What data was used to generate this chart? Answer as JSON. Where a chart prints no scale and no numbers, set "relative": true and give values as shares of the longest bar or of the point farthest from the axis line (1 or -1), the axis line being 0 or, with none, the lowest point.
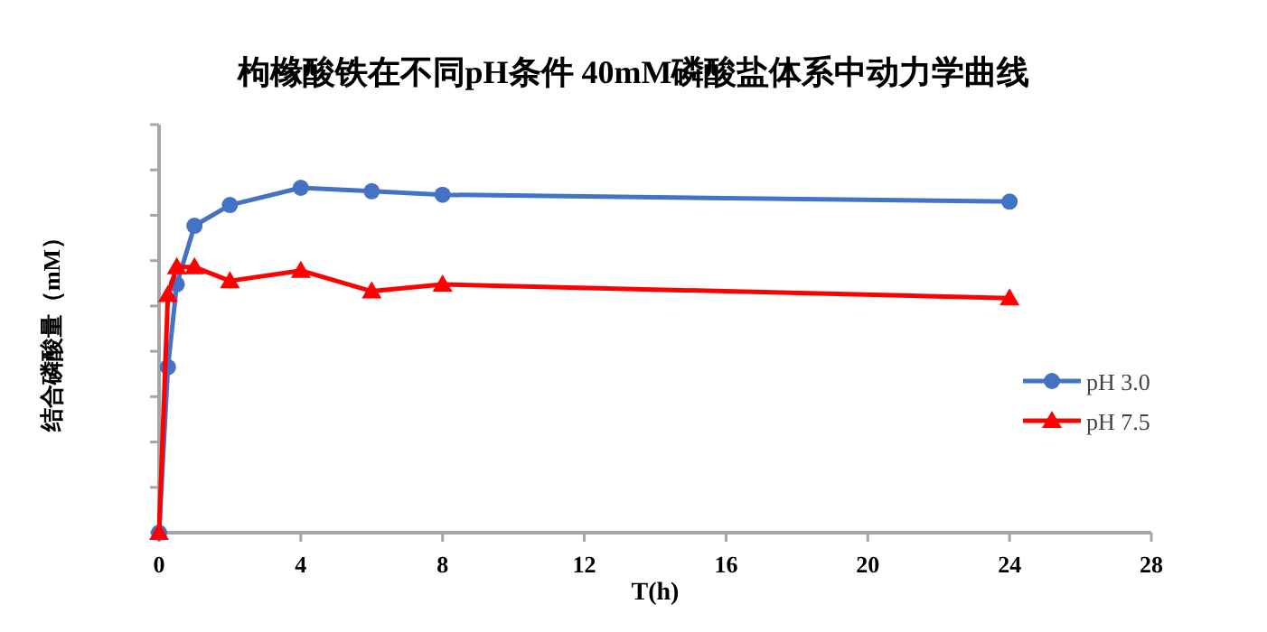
{
  "chart_data": {
    "type": "line",
    "title": "枸橼酸铁在不同pH条件 40mM磷酸盐体系中动力学曲线",
    "xlabel": "T(h)",
    "ylabel": "结合磷酸量（mM）",
    "relative": true,
    "xlim": [
      0,
      28
    ],
    "xticks": [
      0,
      4,
      8,
      12,
      16,
      20,
      24,
      28
    ],
    "grid": false,
    "legend": "right",
    "line_style": "solid",
    "series": [
      {
        "name": "pH 3.0",
        "color": "#4472c4",
        "marker": "circle",
        "x": [
          0,
          0.25,
          0.5,
          1,
          2,
          4,
          6,
          8,
          24
        ],
        "values": [
          0,
          0.48,
          0.72,
          0.89,
          0.95,
          1,
          0.99,
          0.98,
          0.96
        ]
      },
      {
        "name": "pH 7.5",
        "color": "#ff0000",
        "marker": "triangle",
        "x": [
          0,
          0.25,
          0.5,
          1,
          2,
          4,
          6,
          8,
          24
        ],
        "values": [
          0,
          0.69,
          0.77,
          0.77,
          0.73,
          0.76,
          0.7,
          0.72,
          0.68
        ]
      }
    ]
  }
}
